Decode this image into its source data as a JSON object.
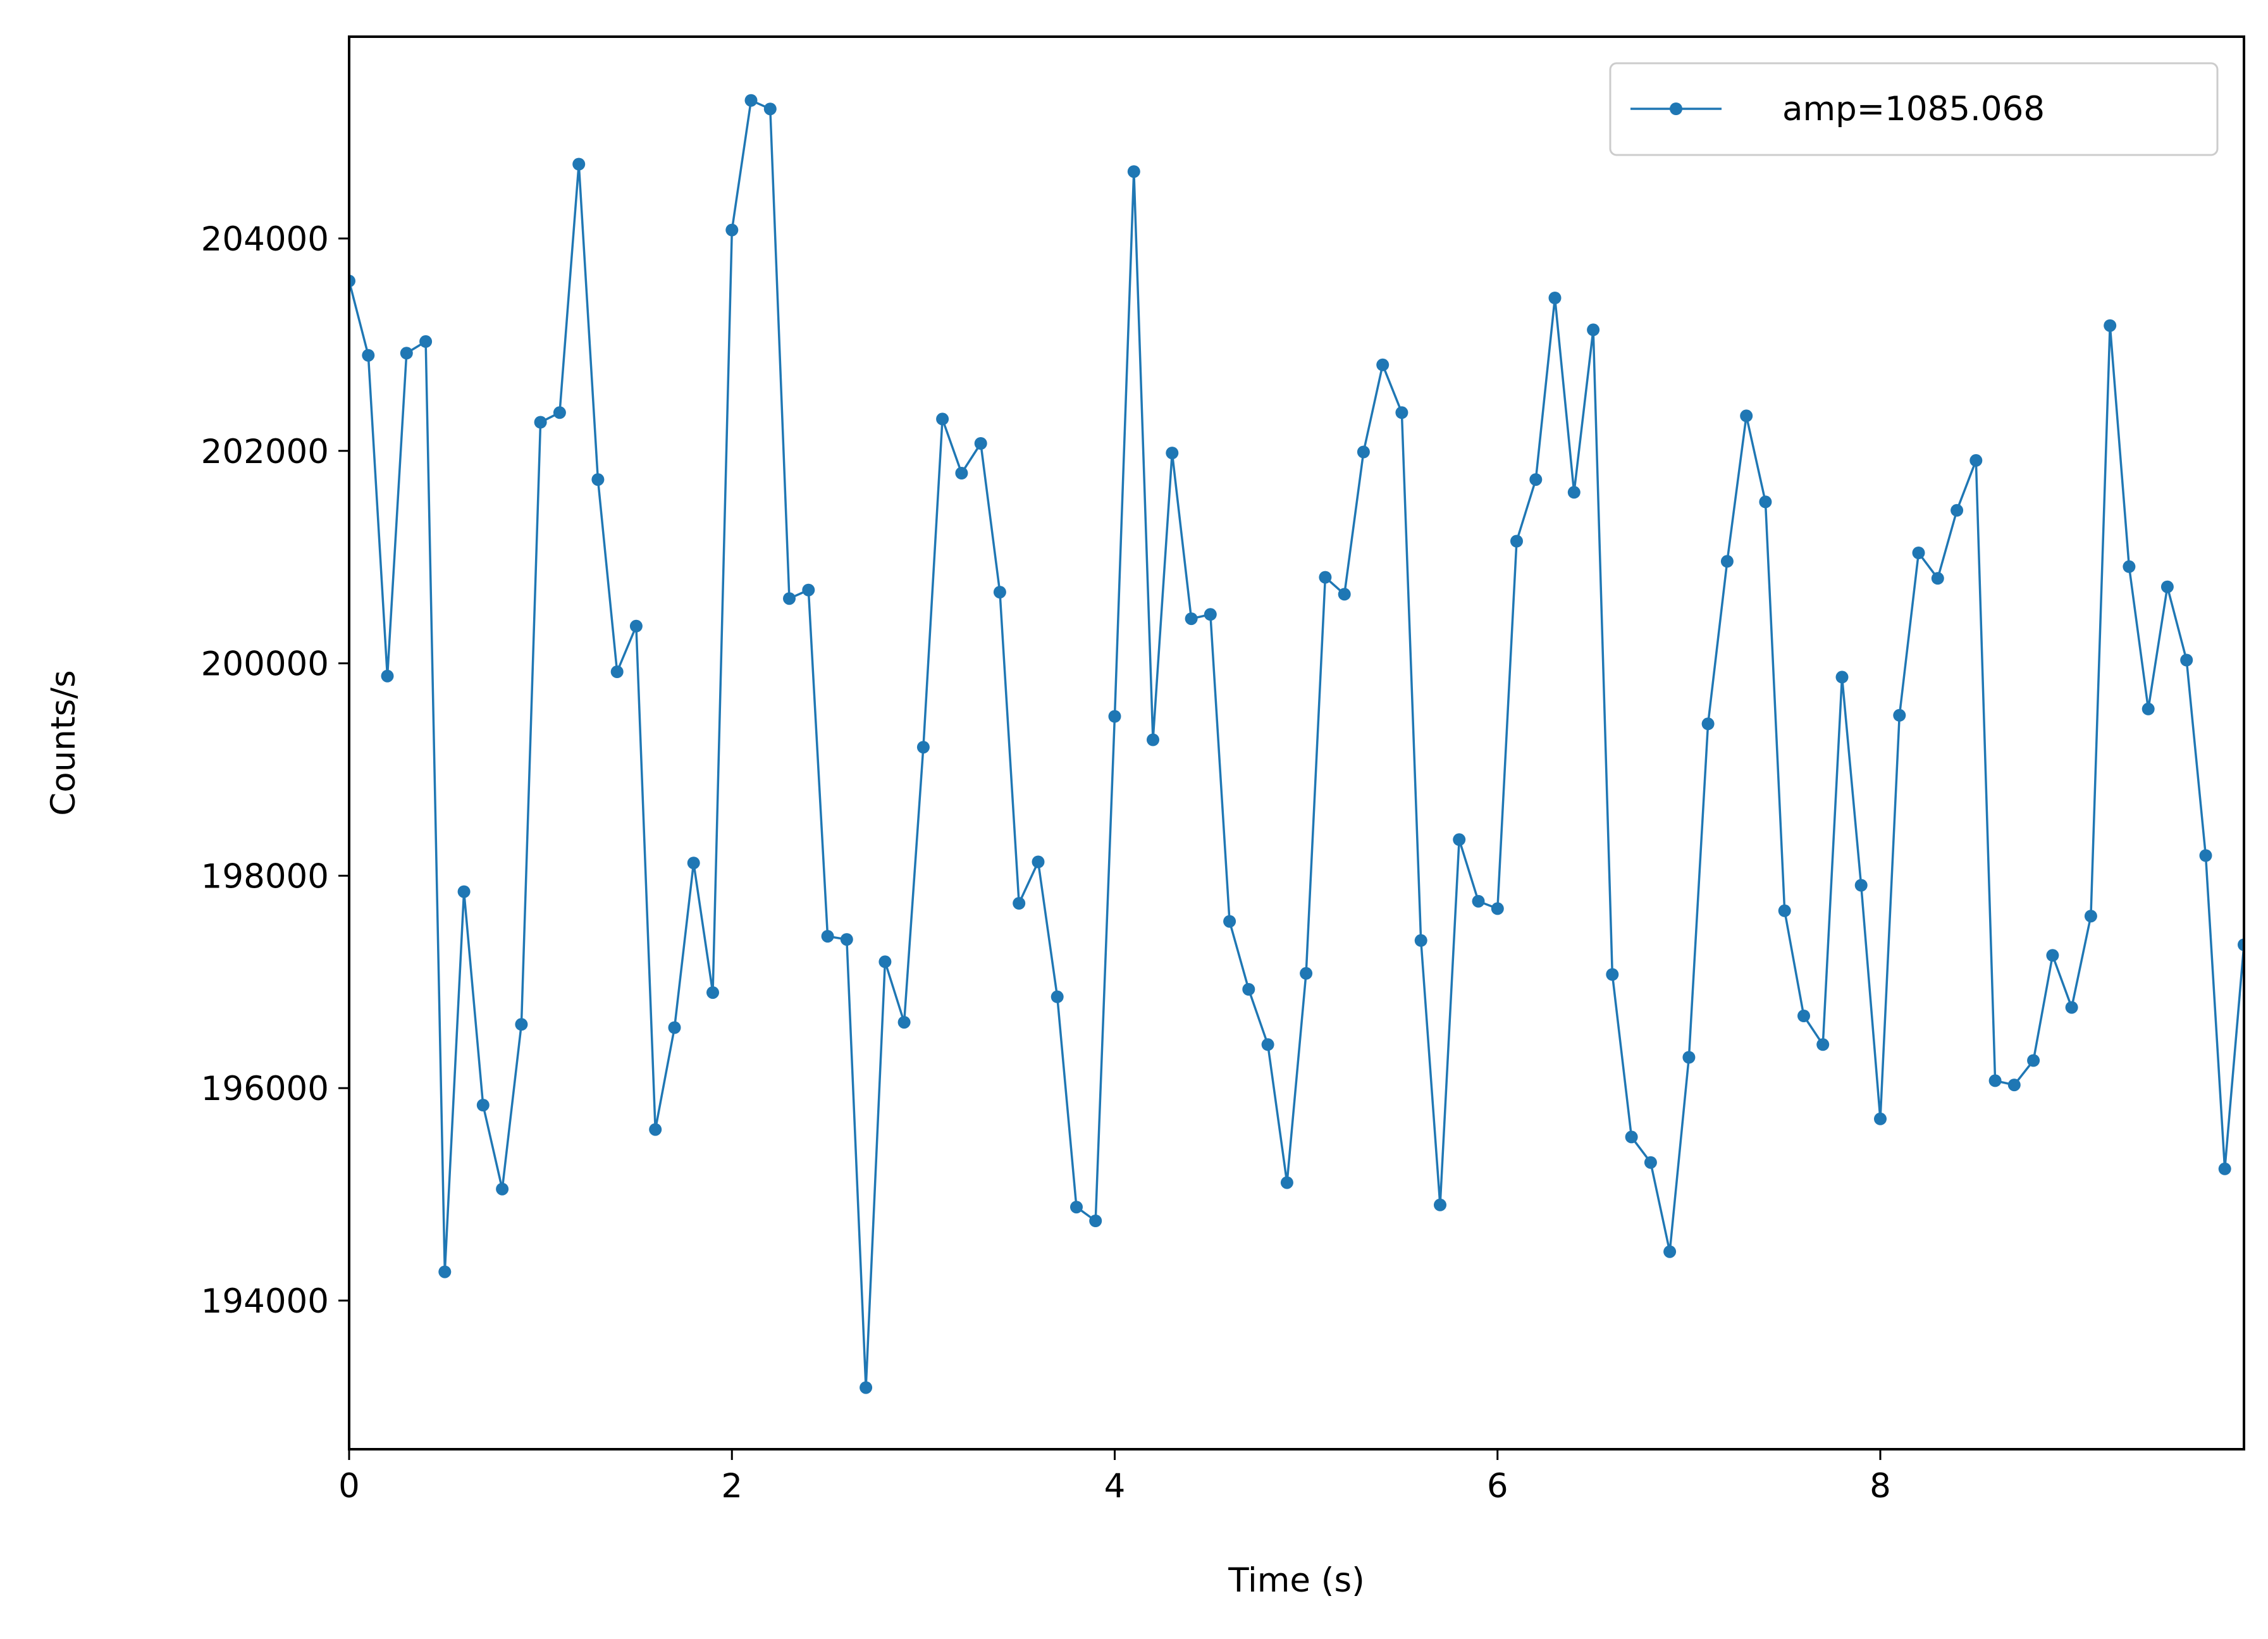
{
  "chart_data": {
    "type": "line",
    "title": "",
    "xlabel": "Time (s)",
    "ylabel": "Counts/s",
    "xlim": [
      0,
      9.9
    ],
    "ylim": [
      192600,
      205900
    ],
    "x_ticks": [
      0,
      2,
      4,
      6,
      8
    ],
    "x_tick_labels": [
      "0",
      "2",
      "4",
      "6",
      "8"
    ],
    "y_ticks": [
      194000,
      196000,
      198000,
      200000,
      202000,
      204000
    ],
    "y_tick_labels": [
      "194000",
      "196000",
      "198000",
      "200000",
      "202000",
      "204000"
    ],
    "grid": false,
    "legend_position": "top-right",
    "series": [
      {
        "name": "amp=1085.068",
        "color": "#1f77b4",
        "marker": "circle",
        "x": [
          0.0,
          0.1,
          0.2,
          0.3,
          0.4,
          0.5,
          0.6,
          0.7,
          0.8,
          0.9,
          1.0,
          1.1,
          1.2,
          1.3,
          1.4,
          1.5,
          1.6,
          1.7,
          1.8,
          1.9,
          2.0,
          2.1,
          2.2,
          2.3,
          2.4,
          2.5,
          2.6,
          2.7,
          2.8,
          2.9,
          3.0,
          3.1,
          3.2,
          3.3,
          3.4,
          3.5,
          3.6,
          3.7,
          3.8,
          3.9,
          4.0,
          4.1,
          4.2,
          4.3,
          4.4,
          4.5,
          4.6,
          4.7,
          4.8,
          4.9,
          5.0,
          5.1,
          5.2,
          5.3,
          5.4,
          5.5,
          5.6,
          5.7,
          5.8,
          5.9,
          6.0,
          6.1,
          6.2,
          6.3,
          6.4,
          6.5,
          6.6,
          6.7,
          6.8,
          6.9,
          7.0,
          7.1,
          7.2,
          7.3,
          7.4,
          7.5,
          7.6,
          7.7,
          7.8,
          7.9,
          8.0,
          8.1,
          8.2,
          8.3,
          8.4,
          8.5,
          8.6,
          8.7,
          8.8,
          8.9,
          9.0,
          9.1,
          9.2,
          9.3,
          9.4,
          9.5,
          9.6,
          9.7,
          9.8,
          9.9
        ],
        "y": [
          203600,
          202900,
          199880,
          202920,
          203030,
          194270,
          197850,
          195840,
          195050,
          196600,
          202270,
          202360,
          204700,
          201730,
          199920,
          200350,
          195610,
          196570,
          198120,
          196900,
          204080,
          205300,
          205220,
          200610,
          200690,
          197430,
          197400,
          193180,
          197190,
          196620,
          199210,
          202300,
          201790,
          202070,
          200670,
          197740,
          198130,
          196860,
          194880,
          194750,
          199500,
          204630,
          199280,
          201980,
          200420,
          200460,
          197570,
          196930,
          196410,
          195110,
          197080,
          200810,
          200650,
          201990,
          202810,
          202360,
          197390,
          194900,
          198340,
          197760,
          197690,
          201150,
          201730,
          203440,
          201610,
          203140,
          197070,
          195540,
          195300,
          194460,
          196290,
          199430,
          200960,
          202330,
          201520,
          197670,
          196680,
          196410,
          199870,
          197910,
          195710,
          199510,
          201040,
          200800,
          201440,
          201910,
          196070,
          196030,
          196260,
          197250,
          196760,
          197620,
          203180,
          200910,
          199570,
          200720,
          200030,
          198190,
          195240,
          197350
        ]
      }
    ]
  }
}
